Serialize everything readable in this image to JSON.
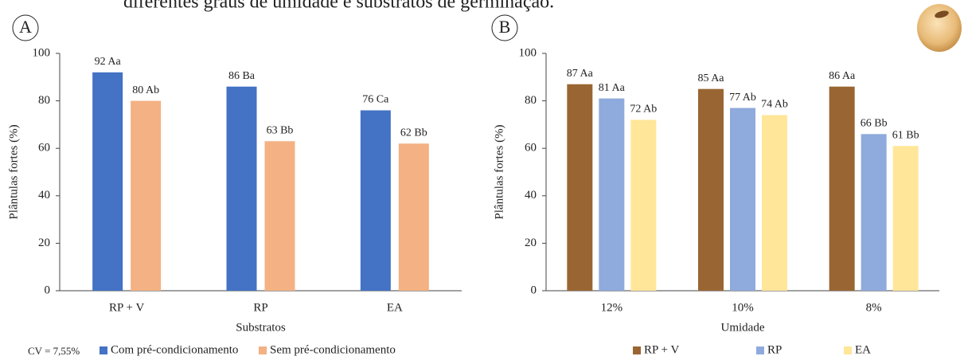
{
  "caption": "diferentes graus de umidade e substratos de germinação.",
  "chart_data": [
    {
      "type": "bar",
      "panel_label": "A",
      "annotation": "CV = 7,55%",
      "x_label": "Substratos",
      "y_label": "Plântulas fortes (%)",
      "categories": [
        "RP + V",
        "RP",
        "EA"
      ],
      "series": [
        {
          "name": "Com pré-condicionamento",
          "color": "#4472c4",
          "values": [
            92,
            86,
            76
          ],
          "value_labels": [
            "92 Aa",
            "86 Ba",
            "76 Ca"
          ]
        },
        {
          "name": "Sem pré-condicionamento",
          "color": "#f4b183",
          "values": [
            80,
            63,
            62
          ],
          "value_labels": [
            "80 Ab",
            "63 Bb",
            "62 Bb"
          ]
        }
      ],
      "ylim": [
        0,
        100
      ],
      "yticks": [
        0,
        20,
        40,
        60,
        80,
        100
      ],
      "grid": false
    },
    {
      "type": "bar",
      "panel_label": "B",
      "x_label": "Umidade",
      "y_label": "Plântulas fortes (%)",
      "categories": [
        "12%",
        "10%",
        "8%"
      ],
      "series": [
        {
          "name": "RP + V",
          "color": "#996633",
          "values": [
            87,
            85,
            86
          ],
          "value_labels": [
            "87 Aa",
            "85 Aa",
            "86 Aa"
          ]
        },
        {
          "name": "RP",
          "color": "#8faadc",
          "values": [
            81,
            77,
            66
          ],
          "value_labels": [
            "81 Aa",
            "77 Ab",
            "66 Bb"
          ]
        },
        {
          "name": "EA",
          "color": "#ffe699",
          "values": [
            72,
            74,
            61
          ],
          "value_labels": [
            "72 Ab",
            "74 Ab",
            "61 Bb"
          ]
        }
      ],
      "ylim": [
        0,
        100
      ],
      "yticks": [
        0,
        20,
        40,
        60,
        80,
        100
      ],
      "grid": false
    }
  ]
}
